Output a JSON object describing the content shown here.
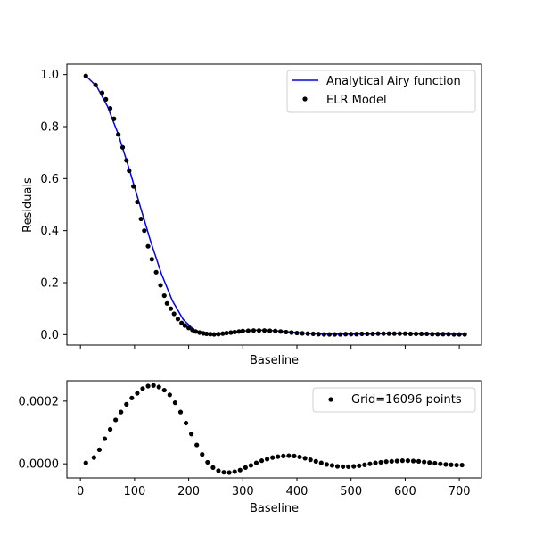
{
  "chart_data": [
    {
      "type": "line",
      "xlabel": "Baseline",
      "ylabel": "Residuals",
      "xlim": [
        -25,
        741
      ],
      "ylim": [
        -0.04,
        1.04
      ],
      "yticks": [
        "0.0",
        "0.2",
        "0.4",
        "0.6",
        "0.8",
        "1.0"
      ],
      "ytick_values": [
        0.0,
        0.2,
        0.4,
        0.6,
        0.8,
        1.0
      ],
      "xtick_values": [
        0,
        100,
        200,
        300,
        400,
        500,
        600,
        700
      ],
      "show_xtick_labels": false,
      "legend_position": "top-right",
      "series": [
        {
          "name": "Analytical Airy function",
          "kind": "line",
          "color": "#0000ff",
          "x": [
            10,
            30,
            50,
            70,
            90,
            110,
            130,
            150,
            170,
            190,
            210,
            230,
            250,
            260,
            270,
            280,
            290,
            300,
            320,
            340,
            360,
            380,
            400,
            420,
            440,
            460,
            480,
            500,
            520,
            540,
            560,
            580,
            600,
            620,
            640,
            660,
            680,
            700,
            710
          ],
          "y": [
            0.995,
            0.955,
            0.878,
            0.77,
            0.638,
            0.497,
            0.357,
            0.232,
            0.13,
            0.058,
            0.018,
            0.003,
            0.0,
            0.002,
            0.005,
            0.008,
            0.011,
            0.014,
            0.017,
            0.017,
            0.015,
            0.012,
            0.008,
            0.005,
            0.003,
            0.002,
            0.002,
            0.002,
            0.003,
            0.003,
            0.004,
            0.004,
            0.004,
            0.003,
            0.003,
            0.002,
            0.002,
            0.001,
            0.001
          ]
        },
        {
          "name": "ELR Model",
          "kind": "scatter",
          "color": "#000000",
          "x": [
            10,
            28,
            40,
            47,
            55,
            62,
            70,
            78,
            85,
            90,
            98,
            105,
            112,
            118,
            125,
            132,
            140,
            148,
            155,
            160,
            167,
            173,
            180,
            187,
            193,
            200,
            207,
            213,
            220,
            227,
            233,
            240,
            247,
            255,
            263,
            270,
            278,
            285,
            293,
            300,
            310,
            320,
            330,
            340,
            350,
            360,
            370,
            380,
            390,
            400,
            410,
            420,
            430,
            440,
            450,
            460,
            470,
            480,
            490,
            500,
            510,
            520,
            530,
            540,
            550,
            560,
            570,
            580,
            590,
            600,
            610,
            620,
            630,
            640,
            650,
            660,
            670,
            680,
            690,
            700,
            710
          ],
          "y": [
            0.995,
            0.96,
            0.93,
            0.905,
            0.87,
            0.83,
            0.77,
            0.72,
            0.67,
            0.63,
            0.57,
            0.51,
            0.445,
            0.4,
            0.34,
            0.29,
            0.24,
            0.19,
            0.15,
            0.12,
            0.1,
            0.08,
            0.06,
            0.045,
            0.035,
            0.026,
            0.018,
            0.012,
            0.008,
            0.005,
            0.003,
            0.002,
            0.001,
            0.002,
            0.004,
            0.006,
            0.008,
            0.01,
            0.012,
            0.014,
            0.015,
            0.016,
            0.016,
            0.016,
            0.015,
            0.014,
            0.012,
            0.01,
            0.008,
            0.006,
            0.005,
            0.004,
            0.003,
            0.002,
            0.001,
            0.001,
            0.001,
            0.001,
            0.002,
            0.002,
            0.002,
            0.003,
            0.003,
            0.003,
            0.004,
            0.004,
            0.004,
            0.004,
            0.004,
            0.004,
            0.003,
            0.003,
            0.003,
            0.003,
            0.002,
            0.002,
            0.002,
            0.002,
            0.001,
            0.001,
            0.001
          ]
        }
      ]
    },
    {
      "type": "scatter",
      "xlabel": "Baseline",
      "ylabel": "",
      "xlim": [
        -25,
        741
      ],
      "ylim": [
        -4.5e-05,
        0.000265
      ],
      "yticks": [
        "0.0000",
        "0.0002"
      ],
      "ytick_values": [
        0.0,
        0.0002
      ],
      "xticks": [
        "0",
        "100",
        "200",
        "300",
        "400",
        "500",
        "600",
        "700"
      ],
      "xtick_values": [
        0,
        100,
        200,
        300,
        400,
        500,
        600,
        700
      ],
      "legend_position": "top-right",
      "series": [
        {
          "name": "Grid=16096 points",
          "kind": "scatter",
          "color": "#000000",
          "x": [
            10,
            25,
            35,
            45,
            55,
            65,
            75,
            85,
            95,
            105,
            115,
            125,
            135,
            145,
            155,
            165,
            175,
            185,
            195,
            205,
            215,
            225,
            235,
            245,
            255,
            265,
            275,
            285,
            295,
            305,
            315,
            325,
            335,
            345,
            355,
            365,
            375,
            385,
            395,
            405,
            415,
            425,
            435,
            445,
            455,
            465,
            475,
            485,
            495,
            505,
            515,
            525,
            535,
            545,
            555,
            565,
            575,
            585,
            595,
            605,
            615,
            625,
            635,
            645,
            655,
            665,
            675,
            685,
            695,
            705
          ],
          "y": [
            3e-06,
            2e-05,
            4.5e-05,
            8e-05,
            0.00011,
            0.00014,
            0.000165,
            0.00019,
            0.00021,
            0.000225,
            0.00024,
            0.000248,
            0.00025,
            0.000245,
            0.000235,
            0.00022,
            0.000195,
            0.000165,
            0.00013,
            9.5e-05,
            6e-05,
            3e-05,
            5e-06,
            -1.2e-05,
            -2.2e-05,
            -2.7e-05,
            -2.8e-05,
            -2.5e-05,
            -2e-05,
            -1.2e-05,
            -5e-06,
            3e-06,
            1e-05,
            1.5e-05,
            2e-05,
            2.3e-05,
            2.5e-05,
            2.6e-05,
            2.5e-05,
            2.2e-05,
            1.8e-05,
            1.3e-05,
            8e-06,
            3e-06,
            -2e-06,
            -5e-06,
            -8e-06,
            -9e-06,
            -9e-06,
            -8e-06,
            -6e-06,
            -3e-06,
            0.0,
            3e-06,
            5e-06,
            7e-06,
            8e-06,
            9e-06,
            1e-05,
            1e-05,
            9e-06,
            8e-06,
            6e-06,
            4e-06,
            2e-06,
            0.0,
            -2e-06,
            -3e-06,
            -4e-06,
            -4e-06
          ]
        }
      ]
    }
  ]
}
